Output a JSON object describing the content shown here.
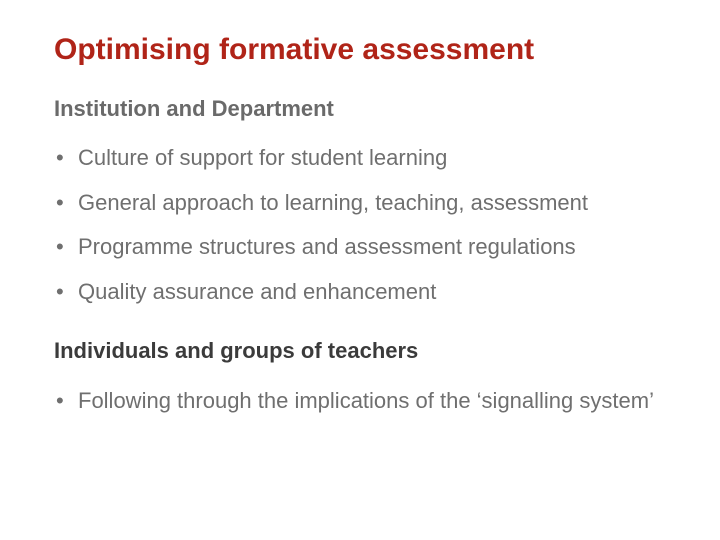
{
  "colors": {
    "title": "#b02418",
    "subheading1": "#6a6a6a",
    "body": "#6f6f6f",
    "subheading2": "#3b3b3b",
    "background": "#ffffff"
  },
  "title": "Optimising formative assessment",
  "section1": {
    "heading": "Institution and Department",
    "items": [
      "Culture of support for student learning",
      "General approach to learning, teaching, assessment",
      "Programme structures and assessment regulations",
      "Quality assurance and enhancement"
    ]
  },
  "section2": {
    "heading": "Individuals and groups of teachers",
    "items": [
      "Following through the implications of the ‘signalling system’"
    ]
  }
}
